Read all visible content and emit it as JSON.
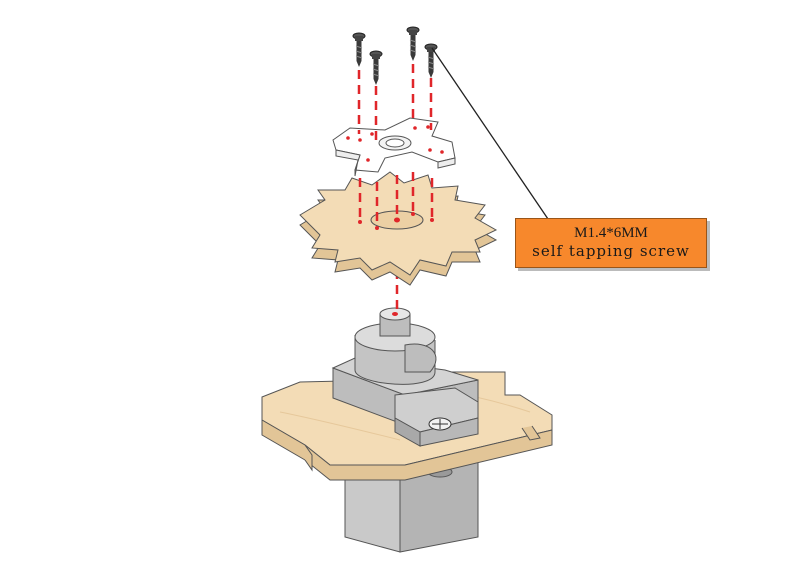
{
  "callout": {
    "line1": "M1.4*6MM",
    "line2": "self tapping screw"
  },
  "colors": {
    "wood": "#f3dcb6",
    "wood_edge": "#e0bf8c",
    "guide_line": "#e0262a",
    "callout_fill": "#f7882c",
    "servo_body": "#c8c8c8",
    "servo_dark": "#8a8a8a"
  }
}
